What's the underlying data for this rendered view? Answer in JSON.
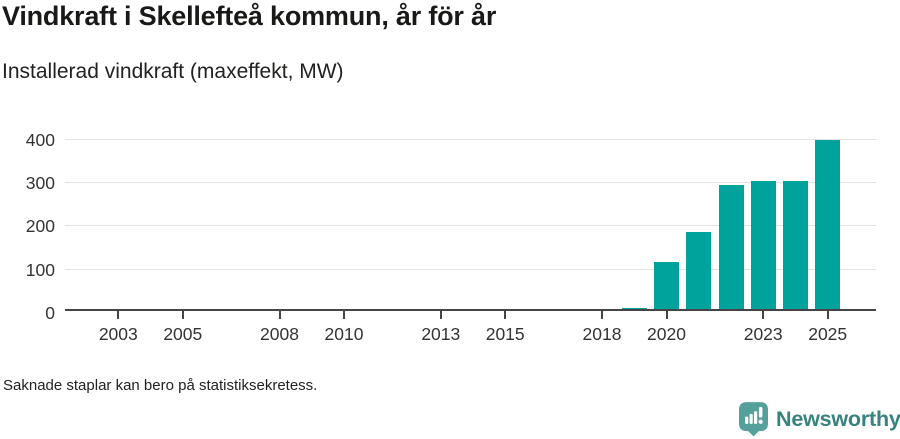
{
  "header": {
    "title": "Vindkraft i Skellefteå kommun, år för år",
    "subtitle": "Installerad vindkraft (maxeffekt, MW)"
  },
  "chart_data": {
    "type": "bar",
    "title": "Vindkraft i Skellefteå kommun, år för år",
    "subtitle": "Installerad vindkraft (maxeffekt, MW)",
    "ylabel": "",
    "xlabel": "",
    "unit": "MW",
    "categories": [
      2002,
      2003,
      2004,
      2005,
      2006,
      2007,
      2008,
      2009,
      2010,
      2011,
      2012,
      2013,
      2014,
      2015,
      2016,
      2017,
      2018,
      2019,
      2020,
      2021,
      2022,
      2023,
      2024,
      2025
    ],
    "values": [
      null,
      null,
      null,
      null,
      null,
      null,
      null,
      null,
      null,
      null,
      null,
      null,
      null,
      null,
      null,
      null,
      null,
      10,
      115,
      185,
      294,
      302,
      302,
      396
    ],
    "x_tick_labels": [
      "2003",
      "2005",
      "2008",
      "2010",
      "2013",
      "2015",
      "2018",
      "2020",
      "2023",
      "2025"
    ],
    "y_ticks": [
      0,
      100,
      200,
      300,
      400
    ],
    "ylim": [
      0,
      430
    ],
    "grid": "horizontal",
    "legend": "none",
    "missing_bars_note": "Saknade staplar kan bero på statistiksekretess."
  },
  "footer": {
    "note": "Saknade staplar kan bero på statistiksekretess.",
    "brand": "Newsworthy"
  },
  "colors": {
    "bar": "#00a39c",
    "grid": "#e4e4e4",
    "axis": "#454545",
    "title_text": "#191917",
    "tick_text": "#333333",
    "note_text": "#222222",
    "logo_icon": "#55a09a",
    "logo_text": "#37837e",
    "background": "#ffffff"
  }
}
